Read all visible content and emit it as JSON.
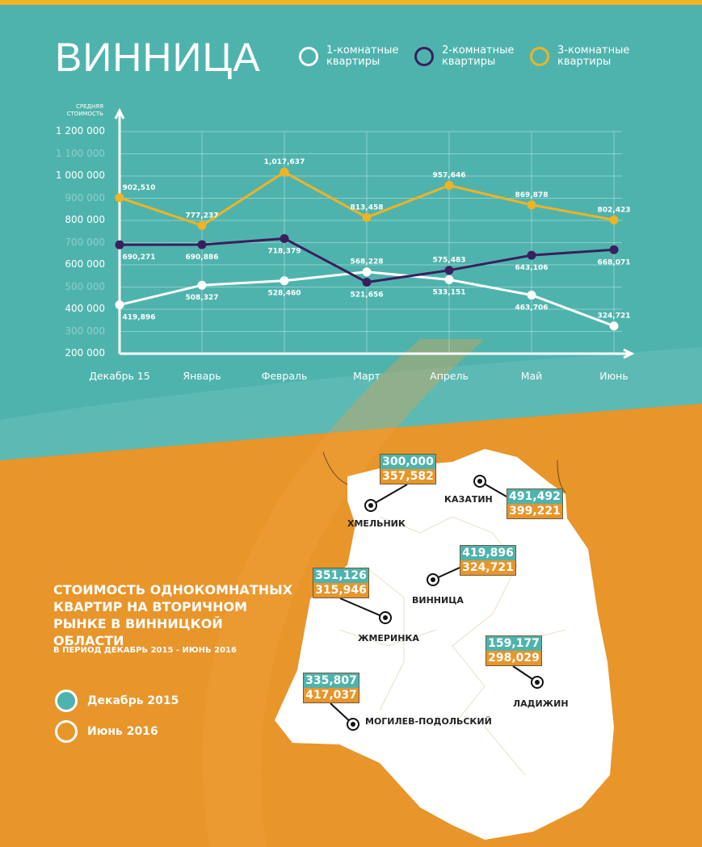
{
  "title": "ВИННИЦА",
  "colors": {
    "teal": "#4fb3ad",
    "orange": "#e8952a",
    "one_room": "#ffffff",
    "two_room": "#3a1f5e",
    "three_room": "#f0b323"
  },
  "legend": [
    "1-комнатные квартиры",
    "2-комнатные квартиры",
    "3-комнатные квартиры"
  ],
  "chart_data": {
    "type": "line",
    "ylabel": "СРЕДНЯЯ СТОИМОСТЬ",
    "ylim": [
      200000,
      1200000
    ],
    "yticks": [
      "200 000",
      "300 000",
      "400 000",
      "500 000",
      "600 000",
      "700 000",
      "800 000",
      "900 000",
      "1 000 000",
      "1 100 000",
      "1 200 000"
    ],
    "categories": [
      "Декабрь 15",
      "Январь",
      "Февраль",
      "Март",
      "Апрель",
      "Май",
      "Июнь"
    ],
    "grid": true,
    "series": [
      {
        "name": "1-комнатные квартиры",
        "values": [
          419896,
          508327,
          528460,
          568228,
          533151,
          463706,
          324721
        ],
        "labels": [
          "419,896",
          "508,327",
          "528,460",
          "568,228",
          "533,151",
          "463,706",
          "324,721"
        ]
      },
      {
        "name": "2-комнатные квартиры",
        "values": [
          690271,
          690886,
          718379,
          521656,
          575483,
          643106,
          668071
        ],
        "labels": [
          "690,271",
          "690,886",
          "718,379",
          "521,656",
          "575,483",
          "643,106",
          "668,071"
        ]
      },
      {
        "name": "3-комнатные квартиры",
        "values": [
          902510,
          777237,
          1017637,
          813458,
          957646,
          869878,
          802423
        ],
        "labels": [
          "902,510",
          "777,237",
          "1,017,637",
          "813,458",
          "957,646",
          "869,878",
          "802,423"
        ]
      }
    ]
  },
  "map": {
    "title": "СТОИМОСТЬ ОДНОКОМНАТНЫХ КВАРТИР НА ВТОРИЧНОМ РЫНКЕ В ВИННИЦКОЙ ОБЛАСТИ",
    "period": "В ПЕРИОД ДЕКАБРЬ 2015 - ИЮНЬ 2016",
    "legend": [
      "Декабрь 2015",
      "Июнь 2016"
    ],
    "cities": [
      {
        "name": "ХМЕЛЬНИК",
        "dec": "300,000",
        "jun": "357,582"
      },
      {
        "name": "КАЗАТИН",
        "dec": "491,492",
        "jun": "399,221"
      },
      {
        "name": "ВИННИЦА",
        "dec": "419,896",
        "jun": "324,721"
      },
      {
        "name": "ЖМЕРИНКА",
        "dec": "351,126",
        "jun": "315,946"
      },
      {
        "name": "ЛАДИЖИН",
        "dec": "159,177",
        "jun": "298,029"
      },
      {
        "name": "МОГИЛЕВ-ПОДОЛЬСКИЙ",
        "dec": "335,807",
        "jun": "417,037"
      }
    ]
  }
}
